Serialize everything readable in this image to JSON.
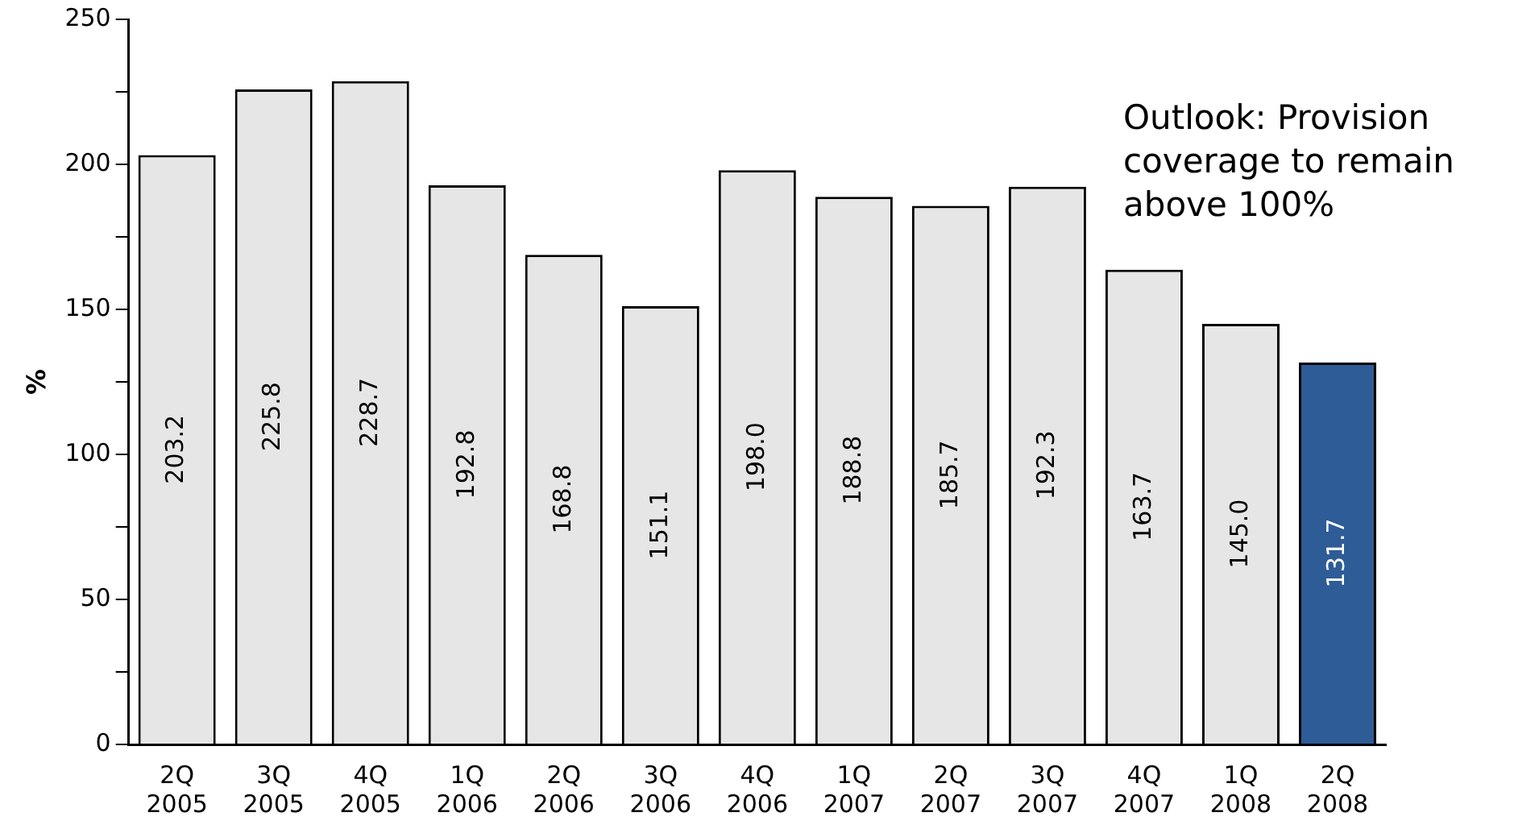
{
  "chart_data": {
    "type": "bar",
    "ylabel": "%",
    "categories": [
      "2Q 2005",
      "3Q 2005",
      "4Q 2005",
      "1Q 2006",
      "2Q 2006",
      "3Q 2006",
      "4Q 2006",
      "1Q 2007",
      "2Q 2007",
      "3Q 2007",
      "4Q 2007",
      "1Q 2008",
      "2Q 2008"
    ],
    "values": [
      203.2,
      225.8,
      228.7,
      192.8,
      168.8,
      151.1,
      198.0,
      188.8,
      185.7,
      192.3,
      163.7,
      145.0,
      131.7
    ],
    "value_labels": [
      "203.2",
      "225.8",
      "228.7",
      "192.8",
      "168.8",
      "151.1",
      "198.0",
      "188.8",
      "185.7",
      "192.3",
      "163.7",
      "145.0",
      "131.7"
    ],
    "colors": [
      "#e6e6e6",
      "#e6e6e6",
      "#e6e6e6",
      "#e6e6e6",
      "#e6e6e6",
      "#e6e6e6",
      "#e6e6e6",
      "#e6e6e6",
      "#e6e6e6",
      "#e6e6e6",
      "#e6e6e6",
      "#e6e6e6",
      "#2e5c96"
    ],
    "ylim": [
      0,
      250
    ],
    "yticks": [
      0,
      {
        "value": 25,
        "label": null
      },
      50,
      {
        "value": 75,
        "label": null
      },
      100,
      {
        "value": 125,
        "label": null
      },
      150,
      {
        "value": 175,
        "label": null
      },
      200,
      {
        "value": 225,
        "label": null
      },
      250
    ],
    "grid": false,
    "legend": false,
    "annotations": [
      "Outlook: Provision coverage to remain above 100%"
    ]
  }
}
